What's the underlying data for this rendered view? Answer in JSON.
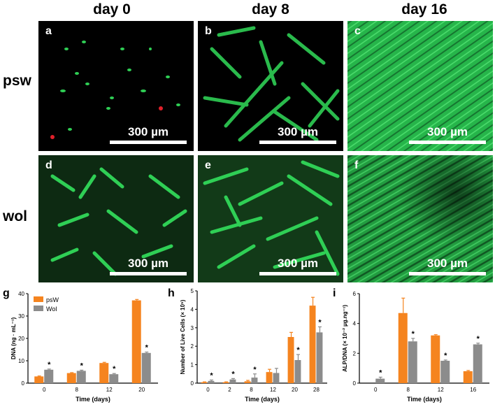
{
  "column_headers": [
    "day 0",
    "day 8",
    "day 16"
  ],
  "row_headers": [
    "psw",
    "wol"
  ],
  "panels": [
    {
      "label": "a",
      "scale": "300 µm"
    },
    {
      "label": "b",
      "scale": "300 µm"
    },
    {
      "label": "c",
      "scale": "300 µm"
    },
    {
      "label": "d",
      "scale": "300 µm"
    },
    {
      "label": "e",
      "scale": "300 µm"
    },
    {
      "label": "f",
      "scale": "300 µm"
    }
  ],
  "colors": {
    "psw": "#f5841f",
    "wol": "#8c8c8c",
    "fluor": "#2fcf55",
    "dead": "#e0202a"
  },
  "chart_labels": [
    "g",
    "h",
    "i"
  ],
  "chart_data": [
    {
      "type": "bar",
      "ylabel": "DNA (ng · mL⁻¹)",
      "xlabel": "Time (days)",
      "categories": [
        "0",
        "8",
        "12",
        "20"
      ],
      "ylim": [
        0,
        40
      ],
      "yticks": [
        "0",
        "10",
        "20",
        "30",
        "40"
      ],
      "legend": [
        "psW",
        "Wol"
      ],
      "series": [
        {
          "name": "psW",
          "values": [
            3,
            4.5,
            9,
            37
          ],
          "err": [
            0.2,
            0.2,
            0.3,
            0.4
          ]
        },
        {
          "name": "Wol",
          "values": [
            6,
            5.5,
            4,
            13.5
          ],
          "err": [
            0.3,
            0.3,
            0.3,
            0.4
          ]
        }
      ],
      "stars": [
        1,
        1,
        1,
        1
      ]
    },
    {
      "type": "bar",
      "ylabel": "Number of Live Cells (× 10⁵)",
      "xlabel": "Time (days)",
      "categories": [
        "0",
        "2",
        "8",
        "12",
        "20",
        "28"
      ],
      "ylim": [
        0,
        5
      ],
      "yticks": [
        "0",
        "1",
        "2",
        "3",
        "4",
        "5"
      ],
      "series": [
        {
          "name": "psW",
          "values": [
            0.05,
            0.05,
            0.1,
            0.6,
            2.5,
            4.2
          ],
          "err": [
            0.02,
            0.02,
            0.05,
            0.15,
            0.25,
            0.45
          ]
        },
        {
          "name": "Wol",
          "values": [
            0.12,
            0.2,
            0.3,
            0.55,
            1.25,
            2.75
          ],
          "err": [
            0.05,
            0.05,
            0.2,
            0.25,
            0.3,
            0.3
          ]
        }
      ],
      "stars": [
        1,
        1,
        1,
        0,
        1,
        1
      ]
    },
    {
      "type": "bar",
      "ylabel": "ALP/DNA (× 10⁻² µg.ng⁻¹)",
      "xlabel": "Time (days)",
      "categories": [
        "0",
        "8",
        "12",
        "16"
      ],
      "ylim": [
        0,
        6
      ],
      "yticks": [
        "0",
        "2",
        "4",
        "6"
      ],
      "series": [
        {
          "name": "psW",
          "values": [
            0,
            4.7,
            3.2,
            0.8
          ],
          "err": [
            0,
            1.0,
            0.05,
            0.05
          ]
        },
        {
          "name": "Wol",
          "values": [
            0.3,
            2.8,
            1.5,
            2.6
          ],
          "err": [
            0.1,
            0.2,
            0.05,
            0.08
          ]
        }
      ],
      "stars": [
        1,
        1,
        1,
        1
      ]
    }
  ]
}
